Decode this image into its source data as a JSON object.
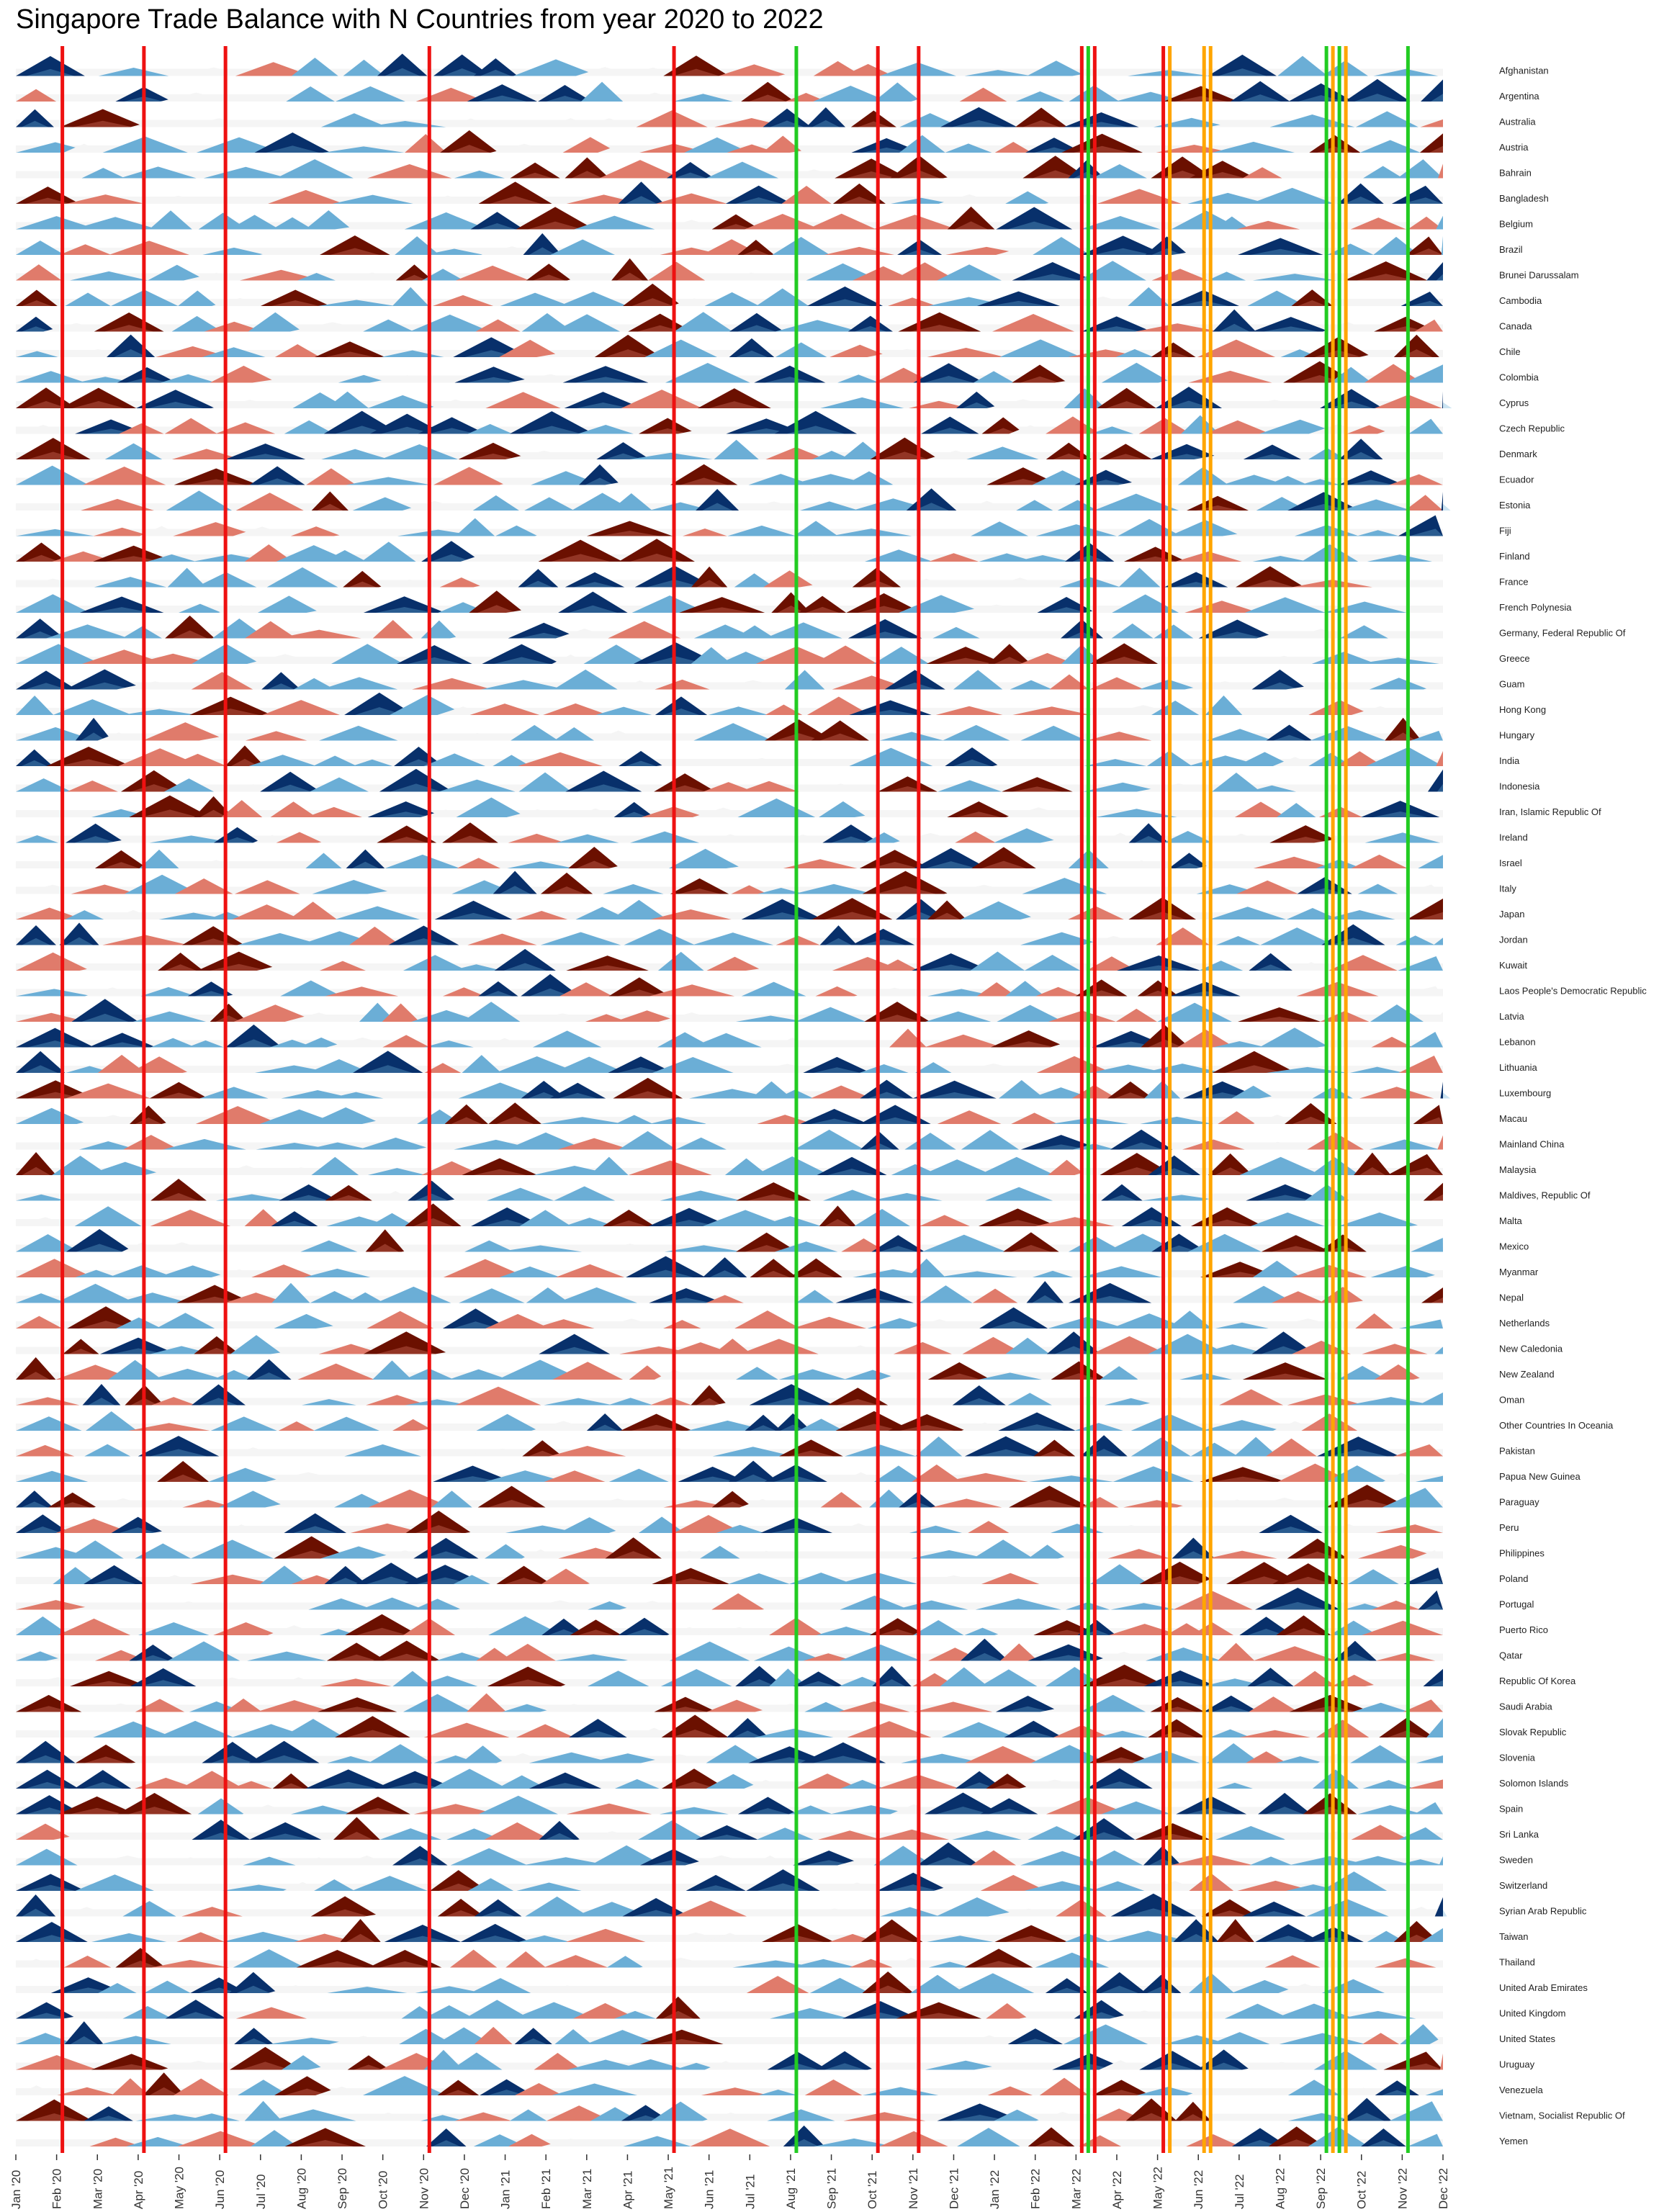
{
  "chart_data": {
    "type": "area",
    "title": "Singapore Trade Balance with N Countries from year 2020 to 2022",
    "xlabel": "",
    "ylabel": "",
    "x_ticks": [
      "Jan '20",
      "Feb '20",
      "Mar '20",
      "Apr '20",
      "May '20",
      "Jun '20",
      "Jul '20",
      "Aug '20",
      "Sep '20",
      "Oct '20",
      "Nov '20",
      "Dec '20",
      "Jan '21",
      "Feb '21",
      "Mar '21",
      "Apr '21",
      "May '21",
      "Jun '21",
      "Jul '21",
      "Aug '21",
      "Sep '21",
      "Oct '21",
      "Nov '21",
      "Dec '21",
      "Jan '22",
      "Feb '22",
      "Mar '22",
      "Apr '22",
      "May '22",
      "Jun '22",
      "Jul '22",
      "Aug '22",
      "Sep '22",
      "Oct '22",
      "Nov '22",
      "Dec '22"
    ],
    "xlim": [
      "Jan '20",
      "Dec '22"
    ],
    "grid": false,
    "legend": "none",
    "countries": [
      "Afghanistan",
      "Argentina",
      "Australia",
      "Austria",
      "Bahrain",
      "Bangladesh",
      "Belgium",
      "Brazil",
      "Brunei Darussalam",
      "Cambodia",
      "Canada",
      "Chile",
      "Colombia",
      "Cyprus",
      "Czech Republic",
      "Denmark",
      "Ecuador",
      "Estonia",
      "Fiji",
      "Finland",
      "France",
      "French Polynesia",
      "Germany, Federal Republic Of",
      "Greece",
      "Guam",
      "Hong Kong",
      "Hungary",
      "India",
      "Indonesia",
      "Iran, Islamic Republic Of",
      "Ireland",
      "Israel",
      "Italy",
      "Japan",
      "Jordan",
      "Kuwait",
      "Laos People's Democratic Republic",
      "Latvia",
      "Lebanon",
      "Lithuania",
      "Luxembourg",
      "Macau",
      "Mainland China",
      "Malaysia",
      "Maldives, Republic Of",
      "Malta",
      "Mexico",
      "Myanmar",
      "Nepal",
      "Netherlands",
      "New Caledonia",
      "New Zealand",
      "Oman",
      "Other Countries In Oceania",
      "Pakistan",
      "Papua New Guinea",
      "Paraguay",
      "Peru",
      "Philippines",
      "Poland",
      "Portugal",
      "Puerto Rico",
      "Qatar",
      "Republic Of Korea",
      "Saudi Arabia",
      "Slovak Republic",
      "Slovenia",
      "Solomon Islands",
      "Spain",
      "Sri Lanka",
      "Sweden",
      "Switzerland",
      "Syrian Arab Republic",
      "Taiwan",
      "Thailand",
      "United Arab Emirates",
      "United Kingdom",
      "United States",
      "Uruguay",
      "Venezuela",
      "Vietnam, Socialist Republic Of",
      "Yemen"
    ],
    "vertical_lines": [
      {
        "date": "Feb '20",
        "color": "red"
      },
      {
        "date": "Apr '20",
        "color": "red"
      },
      {
        "date": "Jun '20",
        "color": "red"
      },
      {
        "date": "Nov '20",
        "color": "red"
      },
      {
        "date": "May '21",
        "color": "red"
      },
      {
        "date": "Aug '21",
        "color": "green"
      },
      {
        "date": "Oct '21",
        "color": "red"
      },
      {
        "date": "Nov '21",
        "color": "red"
      },
      {
        "date": "Mar '22",
        "color": "red"
      },
      {
        "date": "Mar '22",
        "color": "green"
      },
      {
        "date": "Mar '22",
        "color": "red"
      },
      {
        "date": "May '22",
        "color": "red"
      },
      {
        "date": "May '22",
        "color": "orange"
      },
      {
        "date": "Jun '22",
        "color": "orange"
      },
      {
        "date": "Jun '22",
        "color": "orange"
      },
      {
        "date": "Sep '22",
        "color": "green"
      },
      {
        "date": "Sep '22",
        "color": "orange"
      },
      {
        "date": "Sep '22",
        "color": "green"
      },
      {
        "date": "Sep '22",
        "color": "orange"
      },
      {
        "date": "Nov '22",
        "color": "green"
      }
    ],
    "palette": {
      "strong_negative": "#6b1000",
      "negative": "#e07b6b",
      "neutral": "#f5f5f5",
      "positive": "#6baed6",
      "strong_positive": "#08306b",
      "line_red": "#ee1111",
      "line_green": "#22cc22",
      "line_orange": "#ffa500"
    }
  }
}
